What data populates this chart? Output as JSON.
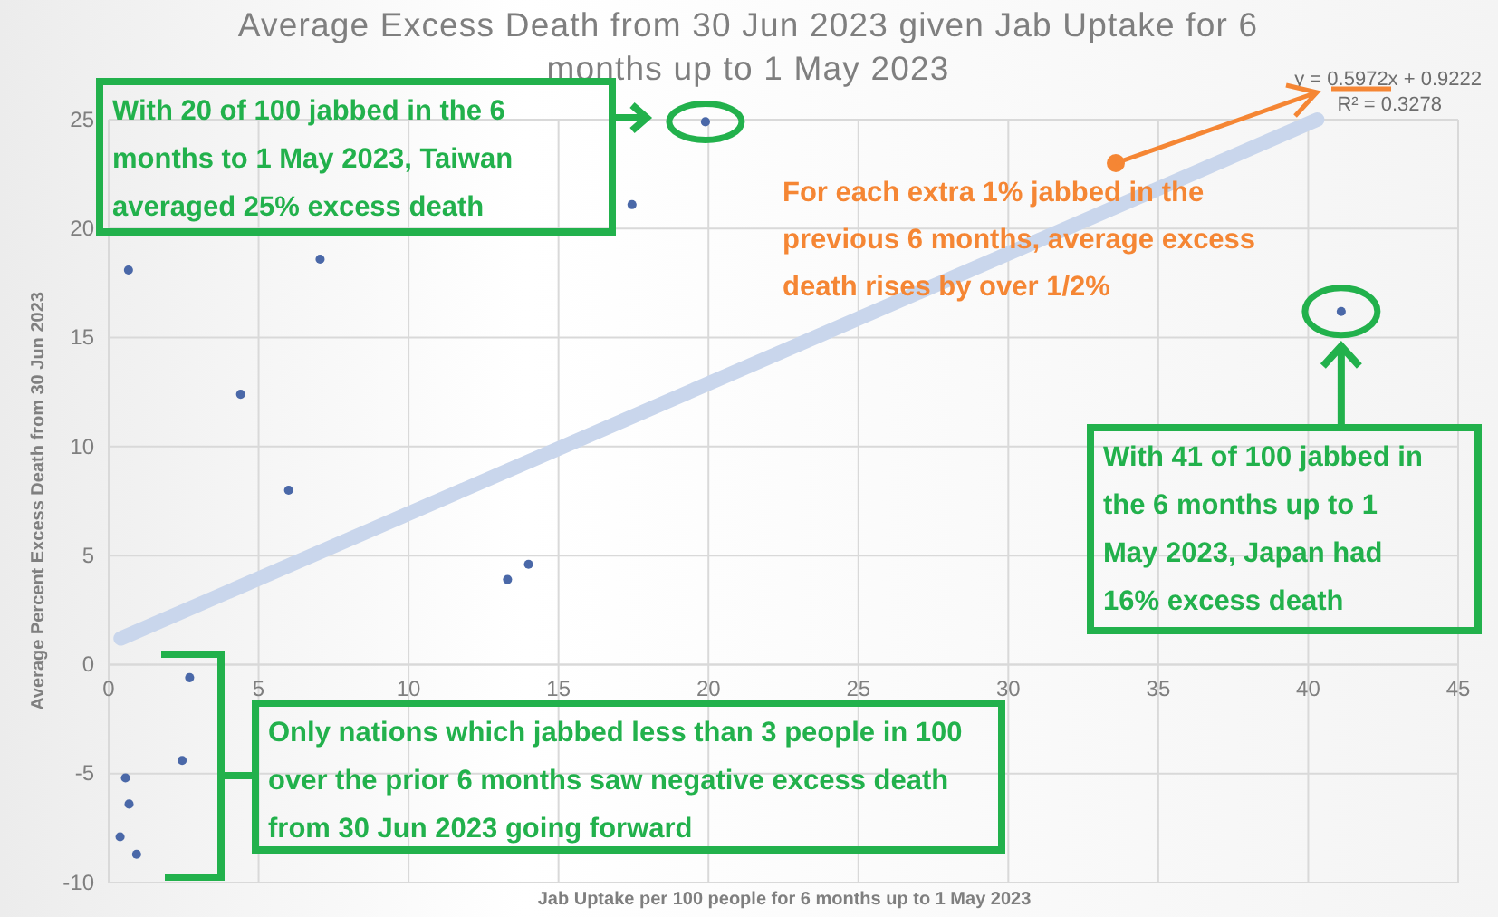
{
  "chart_data": {
    "type": "scatter",
    "title": "Average Excess Death from 30 Jun 2023 given Jab Uptake for 6 months up to 1 May 2023",
    "xlabel": "Jab Uptake per 100 people for 6 months up to 1 May 2023",
    "ylabel": "Average Percent Excess Death from 30 Jun 2023",
    "series": [
      {
        "color": "#4a68a8",
        "marker": "circle",
        "x": [
          0.66,
          4.4,
          7.05,
          6.0,
          17.45,
          19.9,
          13.3,
          14.0,
          41.1,
          2.7,
          2.45,
          0.56,
          0.68,
          0.38,
          0.93
        ],
        "values": [
          18.1,
          12.4,
          18.6,
          8.0,
          21.1,
          24.9,
          3.9,
          4.6,
          16.2,
          -0.6,
          -4.4,
          -5.2,
          -6.4,
          -7.9,
          -8.7
        ]
      },
      {
        "type": "line",
        "color": "#c9d6ec",
        "x": [
          0.4,
          40.3
        ],
        "values": [
          1.2,
          25.0
        ]
      }
    ],
    "xlim": [
      0,
      45
    ],
    "ylim": [
      -10,
      25
    ],
    "xticks": [
      0,
      5,
      10,
      15,
      20,
      25,
      30,
      35,
      40,
      45
    ],
    "yticks": [
      -10,
      -5,
      0,
      5,
      10,
      15,
      20,
      25
    ],
    "grid": true,
    "annotations": [
      "With 20 of 100 jabbed in the 6 months to 1 May 2023, Taiwan averaged 25% excess death",
      "With 41 of 100 jabbed in the 6 months up to 1 May 2023, Japan had 16% excess death",
      "Only nations which jabbed less than 3 people in 100 over the prior 6 months saw negative excess death from 30 Jun 2023 going forward",
      "For each extra 1% jabbed in the previous 6 months, average excess death rises by over 1/2%",
      "y = 0.5972x + 0.9222",
      "R² = 0.3278"
    ]
  }
}
